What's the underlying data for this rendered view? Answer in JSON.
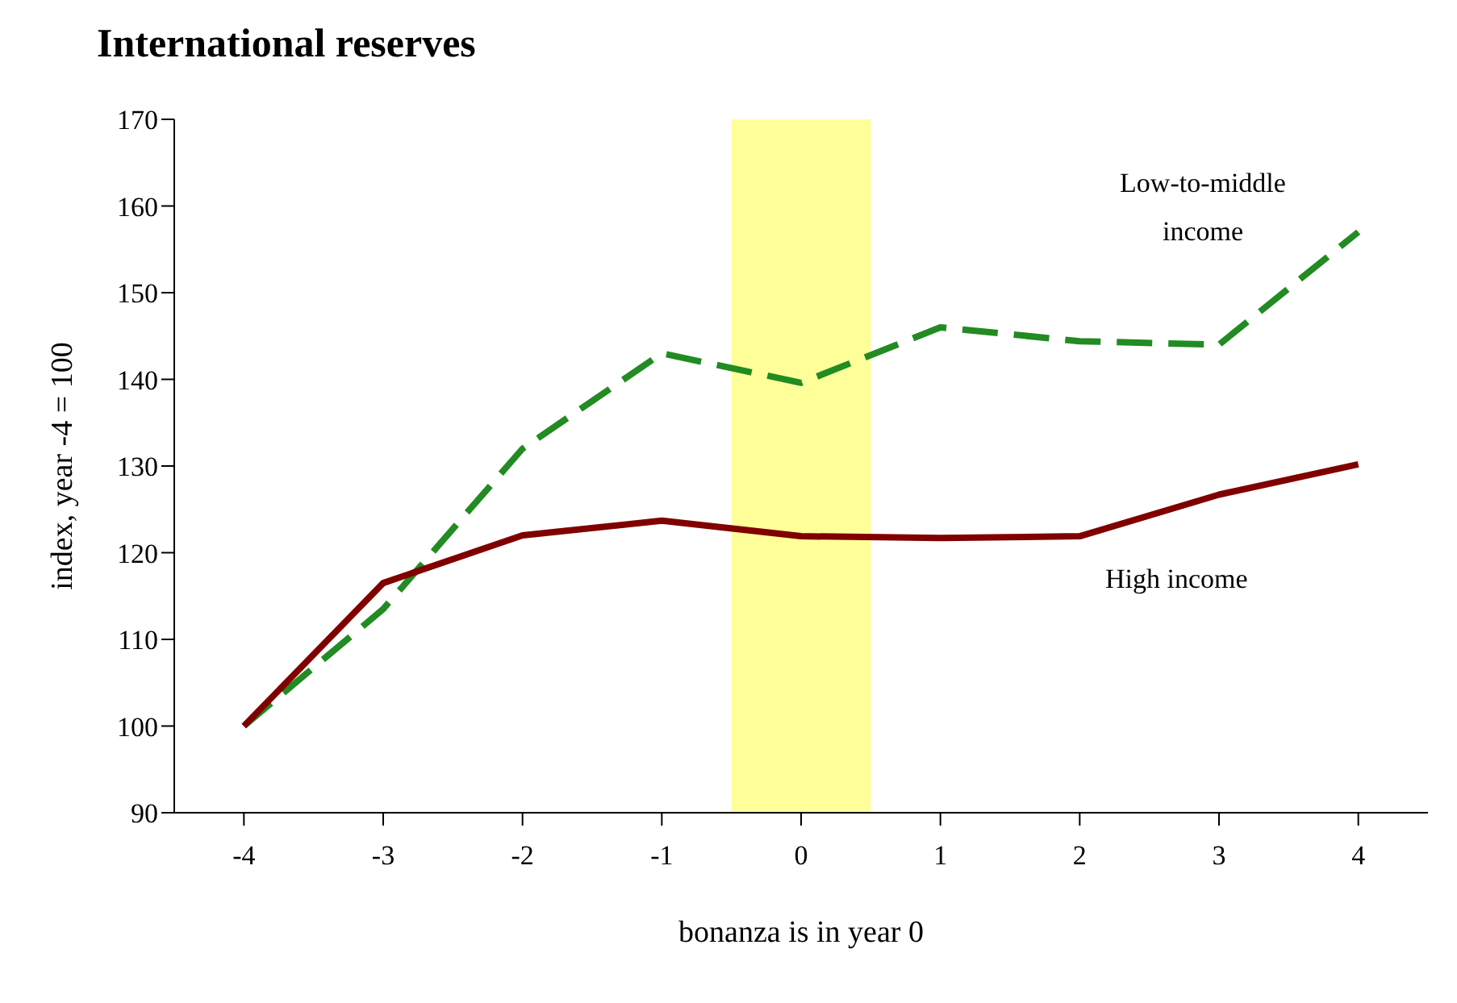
{
  "chart_data": {
    "type": "line",
    "title": "International reserves",
    "xlabel": "bonanza is in year 0",
    "ylabel": "index, year -4 = 100",
    "x": [
      -4,
      -3,
      -2,
      -1,
      0,
      1,
      2,
      3,
      4
    ],
    "xlim": [
      -4.5,
      4.5
    ],
    "xticks": [
      -4,
      -3,
      -2,
      -1,
      0,
      1,
      2,
      3,
      4
    ],
    "ylim": [
      90,
      170
    ],
    "yticks": [
      90,
      100,
      110,
      120,
      130,
      140,
      150,
      160,
      170
    ],
    "grid": false,
    "legend": false,
    "marker": "none",
    "bands": [
      {
        "axis": "x",
        "from": -0.5,
        "to": 0.5,
        "color": "#ffff99"
      }
    ],
    "series": [
      {
        "name": "Low-to-middle income",
        "color": "#228b22",
        "line_style": "dashed",
        "values": [
          100,
          113.5,
          132,
          143,
          139.6,
          146,
          144.4,
          144,
          157
        ]
      },
      {
        "name": "High income",
        "color": "#800000",
        "line_style": "solid",
        "values": [
          100,
          116.5,
          122,
          123.7,
          121.9,
          121.7,
          121.9,
          126.7,
          130.2
        ]
      }
    ]
  }
}
